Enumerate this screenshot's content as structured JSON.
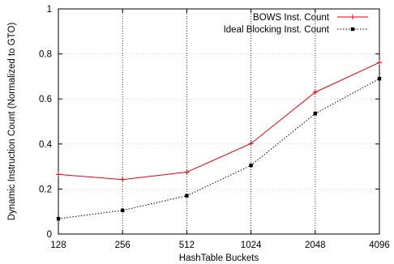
{
  "chart_data": {
    "type": "line",
    "xlabel": "HashTable Buckets",
    "ylabel": "Dynamic Instruction Count (Normalized to GTO)",
    "categories": [
      "128",
      "256",
      "512",
      "1024",
      "2048",
      "4096"
    ],
    "ylim": [
      0,
      1
    ],
    "yticks": [
      "0",
      "0.2",
      "0.4",
      "0.6",
      "0.8",
      "1"
    ],
    "grid": "vertical dotted at each category",
    "legend_position": "top-right",
    "series": [
      {
        "name": "BOWS Inst. Count",
        "color": "#e8000b",
        "line_style": "solid",
        "marker": "plus",
        "values": [
          0.265,
          0.242,
          0.275,
          0.402,
          0.63,
          0.762
        ]
      },
      {
        "name": "Ideal Blocking Inst. Count",
        "color": "#000000",
        "line_style": "dotted",
        "marker": "square",
        "values": [
          0.068,
          0.105,
          0.17,
          0.305,
          0.535,
          0.69
        ]
      }
    ]
  }
}
